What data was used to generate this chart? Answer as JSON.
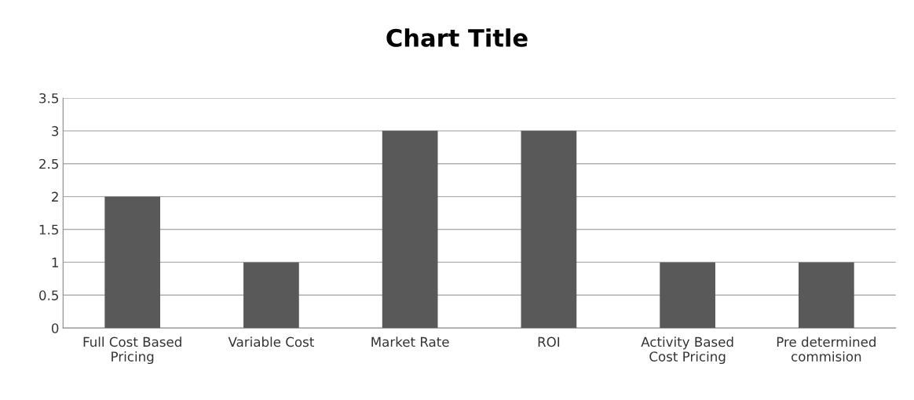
{
  "chart_data": {
    "type": "bar",
    "title": "Chart Title",
    "categories": [
      "Full Cost Based\nPricing",
      "Variable Cost",
      "Market Rate",
      "ROI",
      "Activity Based\nCost Pricing",
      "Pre determined\ncommision"
    ],
    "values": [
      2,
      1,
      3,
      3,
      1,
      1
    ],
    "color": "#595959",
    "ylim": [
      0,
      3.5
    ],
    "yticks": [
      0,
      0.5,
      1,
      1.5,
      2,
      2.5,
      3,
      3.5
    ],
    "grid": "y",
    "legend": false
  }
}
